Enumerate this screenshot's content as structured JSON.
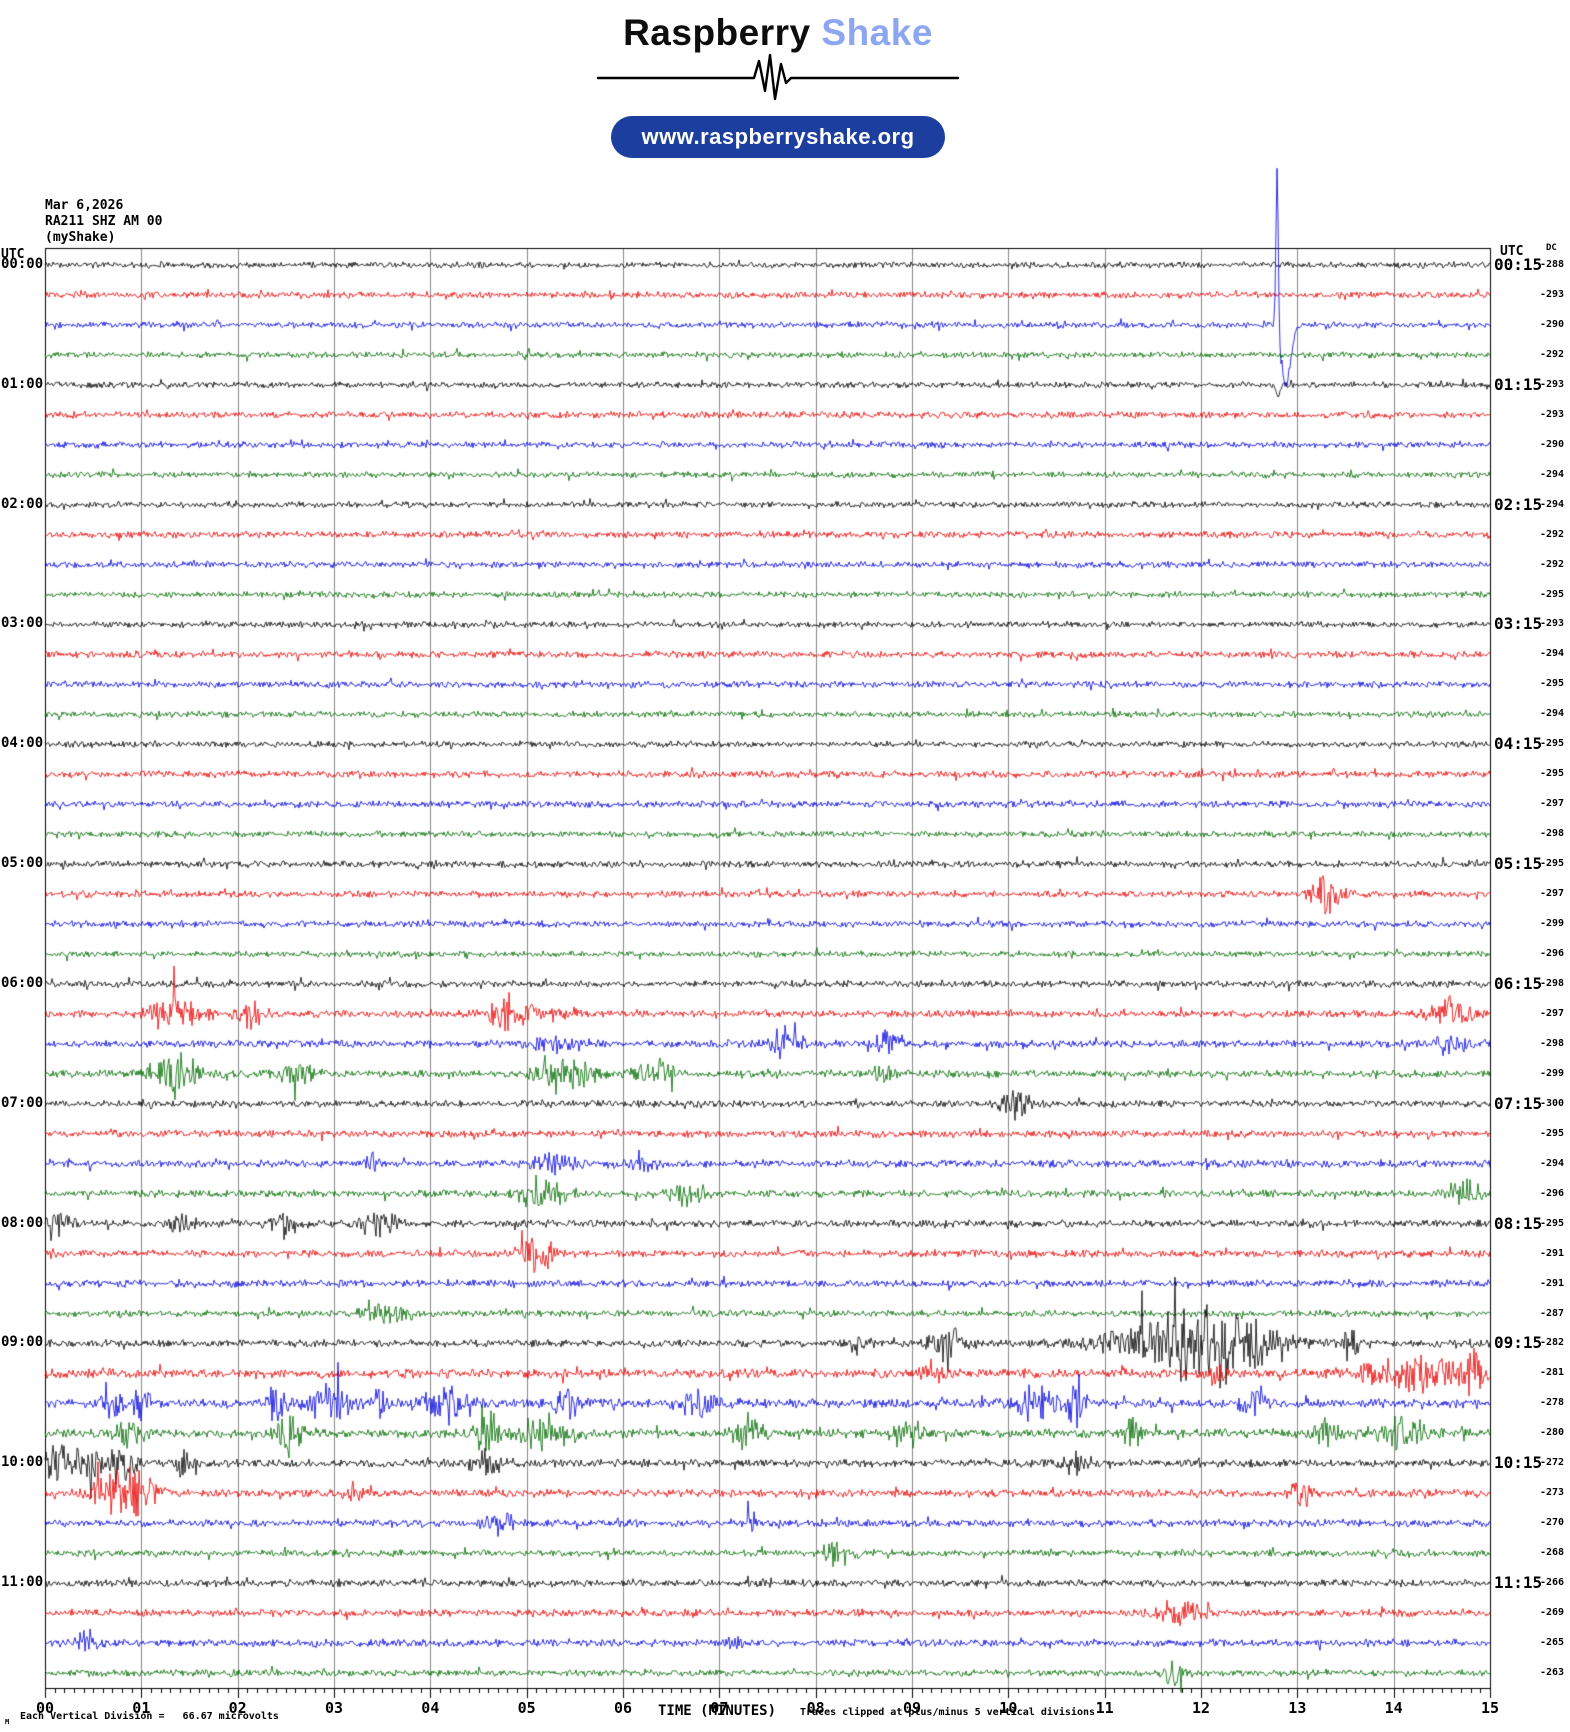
{
  "header": {
    "brand_primary": "Raspberry",
    "brand_secondary": "Shake",
    "url": "www.raspberryshake.org"
  },
  "station": {
    "date": "Mar 6,2026",
    "id": "RA211 SHZ AM 00",
    "network": "(myShake)"
  },
  "axes": {
    "left_header": "UTC",
    "right_header": "UTC",
    "dc_header": "DC",
    "x_label": "TIME (MINUTES)",
    "clip_note": "Traces clipped at plus/minus 5 vertical divisions",
    "scale_marker": "M",
    "scale_note": "Each Vertical Division =   66.67 microvolts"
  },
  "chart_data": {
    "type": "line",
    "subtype": "helicorder-seismogram",
    "title": "RA211 SHZ AM 00 (myShake) Mar 6,2026",
    "xlabel": "TIME (MINUTES)",
    "x_range_minutes": [
      0,
      15
    ],
    "x_tick_labels": [
      "00",
      "01",
      "02",
      "03",
      "04",
      "05",
      "06",
      "07",
      "08",
      "09",
      "10",
      "11",
      "12",
      "13",
      "14",
      "15"
    ],
    "minor_ticks_per_minute": 10,
    "rows_per_hour": 4,
    "trace_color_cycle": [
      "black",
      "red",
      "blue",
      "green"
    ],
    "palette": {
      "black": "#000000",
      "red": "#e80000",
      "blue": "#0000e0",
      "green": "#006a00",
      "grid": "#888888",
      "frame": "#000000"
    },
    "big_event": {
      "row": 2,
      "minute": 12.8,
      "description": "large clipped spike on 00:00 blue trace"
    },
    "rows": [
      {
        "utc_left": "00:00",
        "utc_right": "00:15",
        "color": "black",
        "dc": -288,
        "noise": 2.2,
        "events": []
      },
      {
        "color": "red",
        "dc": -293,
        "noise": 2.4,
        "events": []
      },
      {
        "color": "blue",
        "dc": -290,
        "noise": 2.2,
        "events": [
          {
            "m": 12.79,
            "a": -168,
            "w": 0.012,
            "p": true
          },
          {
            "m": 12.88,
            "a": 58,
            "w": 0.05,
            "p": true
          },
          {
            "m": 12.84,
            "a": 8,
            "w": 0.06
          }
        ]
      },
      {
        "color": "green",
        "dc": -292,
        "noise": 2.2,
        "events": []
      },
      {
        "utc_left": "01:00",
        "utc_right": "01:15",
        "color": "black",
        "dc": -293,
        "noise": 2.2,
        "events": [
          {
            "m": 12.8,
            "a": 12,
            "w": 0.02,
            "p": true
          }
        ]
      },
      {
        "color": "red",
        "dc": -293,
        "noise": 2.4,
        "events": []
      },
      {
        "color": "blue",
        "dc": -290,
        "noise": 2.2,
        "events": []
      },
      {
        "color": "green",
        "dc": -294,
        "noise": 2.2,
        "events": []
      },
      {
        "utc_left": "02:00",
        "utc_right": "02:15",
        "color": "black",
        "dc": -294,
        "noise": 2.2,
        "events": []
      },
      {
        "color": "red",
        "dc": -292,
        "noise": 2.4,
        "events": []
      },
      {
        "color": "blue",
        "dc": -292,
        "noise": 2.2,
        "events": []
      },
      {
        "color": "green",
        "dc": -295,
        "noise": 2.2,
        "events": []
      },
      {
        "utc_left": "03:00",
        "utc_right": "03:15",
        "color": "black",
        "dc": -293,
        "noise": 2.2,
        "events": []
      },
      {
        "color": "red",
        "dc": -294,
        "noise": 2.4,
        "events": []
      },
      {
        "color": "blue",
        "dc": -295,
        "noise": 2.4,
        "events": []
      },
      {
        "color": "green",
        "dc": -294,
        "noise": 2.2,
        "events": []
      },
      {
        "utc_left": "04:00",
        "utc_right": "04:15",
        "color": "black",
        "dc": -295,
        "noise": 2.2,
        "events": []
      },
      {
        "color": "red",
        "dc": -295,
        "noise": 2.4,
        "events": []
      },
      {
        "color": "blue",
        "dc": -297,
        "noise": 2.4,
        "events": []
      },
      {
        "color": "green",
        "dc": -298,
        "noise": 2.2,
        "events": []
      },
      {
        "utc_left": "05:00",
        "utc_right": "05:15",
        "color": "black",
        "dc": -295,
        "noise": 2.4,
        "events": []
      },
      {
        "color": "red",
        "dc": -297,
        "noise": 2.4,
        "events": [
          {
            "m": 13.3,
            "a": 11,
            "w": 0.12
          }
        ]
      },
      {
        "color": "blue",
        "dc": -299,
        "noise": 2.4,
        "events": []
      },
      {
        "color": "green",
        "dc": -296,
        "noise": 2.2,
        "events": []
      },
      {
        "utc_left": "06:00",
        "utc_right": "06:15",
        "color": "black",
        "dc": -298,
        "noise": 2.4,
        "events": []
      },
      {
        "color": "red",
        "dc": -297,
        "noise": 2.6,
        "events": [
          {
            "m": 1.35,
            "a": 13,
            "w": 0.18
          },
          {
            "m": 2.15,
            "a": 10,
            "w": 0.1
          },
          {
            "m": 4.85,
            "a": 12,
            "w": 0.18
          },
          {
            "m": 5.4,
            "a": 6,
            "w": 0.1
          },
          {
            "m": 14.6,
            "a": 10,
            "w": 0.15
          }
        ]
      },
      {
        "color": "blue",
        "dc": -298,
        "noise": 2.6,
        "events": [
          {
            "m": 5.3,
            "a": 5,
            "w": 0.2
          },
          {
            "m": 7.65,
            "a": 11,
            "w": 0.12
          },
          {
            "m": 8.75,
            "a": 8,
            "w": 0.1
          },
          {
            "m": 14.6,
            "a": 10,
            "w": 0.12
          }
        ]
      },
      {
        "color": "green",
        "dc": -299,
        "noise": 2.6,
        "events": [
          {
            "m": 1.35,
            "a": 14,
            "w": 0.2
          },
          {
            "m": 2.65,
            "a": 8,
            "w": 0.15
          },
          {
            "m": 5.4,
            "a": 12,
            "w": 0.2
          },
          {
            "m": 6.35,
            "a": 9,
            "w": 0.15
          },
          {
            "m": 8.7,
            "a": 5,
            "w": 0.1
          }
        ]
      },
      {
        "utc_left": "07:00",
        "utc_right": "07:15",
        "color": "black",
        "dc": -300,
        "noise": 2.4,
        "events": [
          {
            "m": 10.05,
            "a": 11,
            "w": 0.12
          }
        ]
      },
      {
        "color": "red",
        "dc": -295,
        "noise": 2.6,
        "events": []
      },
      {
        "color": "blue",
        "dc": -294,
        "noise": 2.6,
        "events": [
          {
            "m": 3.4,
            "a": 7,
            "w": 0.06
          },
          {
            "m": 5.3,
            "a": 7,
            "w": 0.15
          },
          {
            "m": 6.2,
            "a": 7,
            "w": 0.1
          }
        ]
      },
      {
        "color": "green",
        "dc": -296,
        "noise": 2.6,
        "events": [
          {
            "m": 5.15,
            "a": 11,
            "w": 0.15
          },
          {
            "m": 6.65,
            "a": 7,
            "w": 0.12
          },
          {
            "m": 14.75,
            "a": 11,
            "w": 0.1
          }
        ]
      },
      {
        "utc_left": "08:00",
        "utc_right": "08:15",
        "color": "black",
        "dc": -295,
        "noise": 2.6,
        "events": [
          {
            "m": 0.15,
            "a": 7,
            "w": 0.1
          },
          {
            "m": 1.4,
            "a": 7,
            "w": 0.1
          },
          {
            "m": 2.5,
            "a": 9,
            "w": 0.1
          },
          {
            "m": 3.45,
            "a": 11,
            "w": 0.12
          }
        ]
      },
      {
        "color": "red",
        "dc": -291,
        "noise": 2.6,
        "events": [
          {
            "m": 5.1,
            "a": 13,
            "w": 0.12
          }
        ]
      },
      {
        "color": "blue",
        "dc": -291,
        "noise": 2.6,
        "events": []
      },
      {
        "color": "green",
        "dc": -287,
        "noise": 2.4,
        "events": [
          {
            "m": 3.55,
            "a": 8,
            "w": 0.15
          }
        ]
      },
      {
        "utc_left": "09:00",
        "utc_right": "09:15",
        "color": "black",
        "dc": -282,
        "noise": 2.6,
        "events": [
          {
            "m": 8.45,
            "a": 7,
            "w": 0.08
          },
          {
            "m": 9.35,
            "a": 15,
            "w": 0.12
          },
          {
            "m": 11.7,
            "a": 22,
            "w": 0.45
          },
          {
            "m": 12.4,
            "a": 15,
            "w": 0.35
          },
          {
            "m": 13.55,
            "a": 11,
            "w": 0.08
          }
        ]
      },
      {
        "color": "red",
        "dc": -281,
        "noise": 3.2,
        "events": [
          {
            "m": 9.2,
            "a": 7,
            "w": 0.1
          },
          {
            "m": 12.15,
            "a": 11,
            "w": 0.06
          },
          {
            "m": 14.2,
            "a": 12,
            "w": 0.35
          },
          {
            "m": 14.85,
            "a": 15,
            "w": 0.08
          }
        ]
      },
      {
        "color": "blue",
        "dc": -278,
        "noise": 3.2,
        "events": [
          {
            "m": 0.7,
            "a": 9,
            "w": 0.08
          },
          {
            "m": 1.0,
            "a": 14,
            "w": 0.06
          },
          {
            "m": 2.4,
            "a": 18,
            "w": 0.06
          },
          {
            "m": 2.95,
            "a": 14,
            "w": 0.15
          },
          {
            "m": 3.5,
            "a": 11,
            "w": 0.1
          },
          {
            "m": 4.15,
            "a": 16,
            "w": 0.15
          },
          {
            "m": 5.4,
            "a": 9,
            "w": 0.1
          },
          {
            "m": 6.8,
            "a": 9,
            "w": 0.15
          },
          {
            "m": 10.25,
            "a": 11,
            "w": 0.15
          },
          {
            "m": 10.7,
            "a": 16,
            "w": 0.07
          },
          {
            "m": 12.6,
            "a": 11,
            "w": 0.1
          }
        ]
      },
      {
        "color": "green",
        "dc": -280,
        "noise": 3.2,
        "events": [
          {
            "m": 0.9,
            "a": 9,
            "w": 0.1
          },
          {
            "m": 2.55,
            "a": 14,
            "w": 0.1
          },
          {
            "m": 4.6,
            "a": 18,
            "w": 0.08
          },
          {
            "m": 5.2,
            "a": 11,
            "w": 0.2
          },
          {
            "m": 7.3,
            "a": 11,
            "w": 0.1
          },
          {
            "m": 9.0,
            "a": 9,
            "w": 0.1
          },
          {
            "m": 11.3,
            "a": 11,
            "w": 0.08
          },
          {
            "m": 13.3,
            "a": 9,
            "w": 0.1
          },
          {
            "m": 14.1,
            "a": 11,
            "w": 0.15
          }
        ]
      },
      {
        "utc_left": "10:00",
        "utc_right": "10:15",
        "color": "black",
        "dc": -272,
        "noise": 2.8,
        "events": [
          {
            "m": 0.25,
            "a": 13,
            "w": 0.25
          },
          {
            "m": 0.8,
            "a": 11,
            "w": 0.1
          },
          {
            "m": 1.45,
            "a": 9,
            "w": 0.08
          },
          {
            "m": 4.55,
            "a": 7,
            "w": 0.15
          },
          {
            "m": 10.7,
            "a": 7,
            "w": 0.1
          }
        ]
      },
      {
        "color": "red",
        "dc": -273,
        "noise": 2.8,
        "events": [
          {
            "m": 0.75,
            "a": 16,
            "w": 0.18
          },
          {
            "m": 1.05,
            "a": 9,
            "w": 0.1
          },
          {
            "m": 3.2,
            "a": 9,
            "w": 0.06
          },
          {
            "m": 13.05,
            "a": 7,
            "w": 0.1
          }
        ]
      },
      {
        "color": "blue",
        "dc": -270,
        "noise": 2.6,
        "events": [
          {
            "m": 4.7,
            "a": 11,
            "w": 0.1
          },
          {
            "m": 7.3,
            "a": 6,
            "w": 0.06
          }
        ]
      },
      {
        "color": "green",
        "dc": -268,
        "noise": 2.4,
        "events": [
          {
            "m": 8.2,
            "a": 7,
            "w": 0.1
          }
        ]
      },
      {
        "utc_left": "11:00",
        "utc_right": "11:15",
        "color": "black",
        "dc": -266,
        "noise": 2.6,
        "events": []
      },
      {
        "color": "red",
        "dc": -269,
        "noise": 2.6,
        "events": [
          {
            "m": 11.8,
            "a": 11,
            "w": 0.15
          }
        ]
      },
      {
        "color": "blue",
        "dc": -265,
        "noise": 2.6,
        "events": [
          {
            "m": 0.45,
            "a": 9,
            "w": 0.08
          },
          {
            "m": 7.15,
            "a": 5,
            "w": 0.08
          }
        ]
      },
      {
        "color": "green",
        "dc": -263,
        "noise": 2.4,
        "events": [
          {
            "m": 11.75,
            "a": 14,
            "w": 0.07
          }
        ]
      }
    ]
  }
}
